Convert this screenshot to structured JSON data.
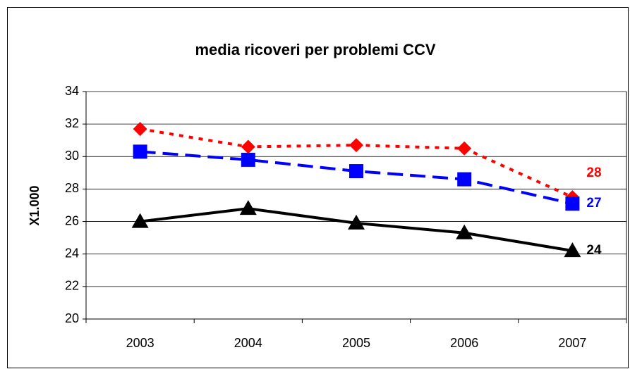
{
  "chart_data": {
    "type": "line",
    "title": "media ricoveri per problemi CCV",
    "y_label": "X1.000",
    "categories": [
      "2003",
      "2004",
      "2005",
      "2006",
      "2007"
    ],
    "series": [
      {
        "color": "#ff0000",
        "line_style": "dotted",
        "marker": "diamond",
        "values": [
          31.7,
          30.6,
          30.7,
          30.5,
          27.5
        ],
        "value_labels": [
          null,
          null,
          null,
          null,
          "28"
        ]
      },
      {
        "color": "#0000ff",
        "line_style": "dashed",
        "marker": "square",
        "values": [
          30.3,
          29.8,
          29.1,
          28.6,
          27.1
        ],
        "value_labels": [
          null,
          null,
          null,
          null,
          "27"
        ]
      },
      {
        "color": "#000000",
        "line_style": "solid",
        "marker": "triangle",
        "values": [
          26.0,
          26.8,
          25.9,
          25.3,
          24.2
        ],
        "value_labels": [
          null,
          null,
          null,
          null,
          "24"
        ]
      }
    ],
    "ylim": [
      20,
      34
    ],
    "yticks": [
      20,
      22,
      24,
      26,
      28,
      30,
      32,
      34
    ],
    "grid": true
  }
}
